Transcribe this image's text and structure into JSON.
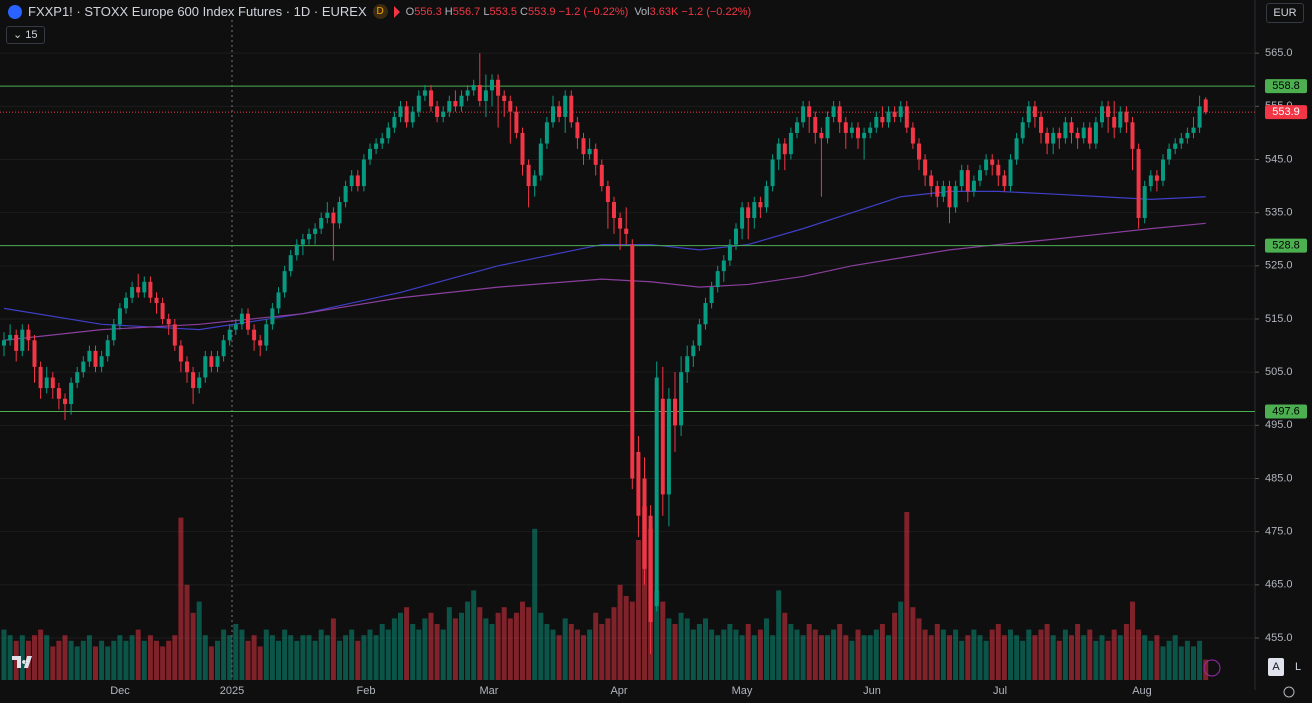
{
  "chart_data": {
    "type": "candlestick",
    "symbol_title": "FXXP1! · STOXX Europe 600 Index Futures · 1D · EUREX",
    "interval_badge": "D",
    "legend_labels": {
      "open": "O",
      "high": "H",
      "low": "L",
      "close": "C",
      "volume": "Vol"
    },
    "change": "−1.2 (−0.22%)",
    "last_volume_label": "3.63K",
    "volume_change": "−1.2 (−0.22%)",
    "indicator_count": "15",
    "currency": "EUR",
    "scale_buttons": [
      "A",
      "L"
    ],
    "x_labels": [
      "Dec",
      "2025",
      "Feb",
      "Mar",
      "Apr",
      "May",
      "Jun",
      "Jul",
      "Aug"
    ],
    "up_color": "#089981",
    "down_color": "#f23645",
    "ylim": [
      447.1,
      575.0
    ],
    "yticks": [
      {
        "value": 455,
        "label": "455.0"
      },
      {
        "value": 465,
        "label": "465.0"
      },
      {
        "value": 475,
        "label": "475.0"
      },
      {
        "value": 485,
        "label": "485.0"
      },
      {
        "value": 495,
        "label": "495.0"
      },
      {
        "value": 505,
        "label": "505.0"
      },
      {
        "value": 515,
        "label": "515.0"
      },
      {
        "value": 525,
        "label": "525.0"
      },
      {
        "value": 535,
        "label": "535.0"
      },
      {
        "value": 545,
        "label": "545.0"
      },
      {
        "value": 555,
        "label": "555.0"
      },
      {
        "value": 565,
        "label": "565.0"
      }
    ],
    "levels": [
      {
        "value": 558.8,
        "label": "558.8",
        "color": "#4caf50",
        "style": "solid"
      },
      {
        "value": 553.9,
        "label": "553.9",
        "color": "#f23645",
        "style": "dotted"
      },
      {
        "value": 528.8,
        "label": "528.8",
        "color": "#4caf50",
        "style": "solid"
      },
      {
        "value": 497.6,
        "label": "497.6",
        "color": "#4caf50",
        "style": "solid"
      }
    ],
    "open": [
      510,
      511,
      512,
      509,
      513,
      511,
      506,
      502,
      504,
      502,
      500,
      499,
      503,
      505,
      507,
      509,
      506,
      508,
      511,
      514,
      517,
      519,
      521,
      520,
      522,
      519,
      518,
      515,
      514,
      510,
      507,
      505,
      502,
      504,
      508,
      506,
      508,
      511,
      513,
      514,
      516,
      513,
      511,
      510,
      514,
      517,
      520,
      524,
      527,
      529,
      530,
      531,
      532,
      534,
      535,
      533,
      537,
      540,
      542,
      540,
      545,
      547,
      548,
      549,
      551,
      553,
      555,
      552,
      554,
      557,
      558,
      555,
      553,
      554,
      556,
      555,
      557,
      558,
      559,
      556,
      558,
      560,
      557,
      556,
      554,
      550,
      544,
      540,
      542,
      548,
      552,
      555,
      553,
      557,
      552,
      549,
      546,
      547,
      544,
      540,
      537,
      534,
      532,
      529,
      490,
      485,
      478,
      461,
      500,
      482,
      500,
      495,
      505,
      508,
      510,
      514,
      518,
      521,
      524,
      526,
      529,
      532,
      536,
      534,
      537,
      536,
      540,
      545,
      548,
      546,
      550,
      552,
      555,
      553,
      550,
      549,
      553,
      555,
      552,
      550,
      551,
      549,
      550,
      551,
      553,
      552,
      554,
      553,
      555,
      551,
      548,
      545,
      542,
      540,
      538,
      540,
      536,
      540,
      543,
      539,
      541,
      543,
      545,
      544,
      542,
      540,
      545,
      549,
      552,
      555,
      553,
      550,
      548,
      550,
      549,
      552,
      550,
      549,
      551,
      548,
      552,
      555,
      553,
      551,
      554,
      552,
      547,
      534,
      540,
      542,
      541,
      545,
      547,
      548,
      549,
      550,
      551,
      556.3
    ],
    "high": [
      512.5,
      514,
      513,
      514,
      514,
      512,
      507,
      506,
      505,
      503,
      501,
      504,
      506,
      508,
      510,
      510,
      509,
      512,
      515,
      518,
      520,
      522,
      523.5,
      523,
      523,
      520,
      519,
      516,
      515,
      511,
      508,
      506,
      505,
      509,
      509,
      509,
      512,
      514,
      515,
      517,
      517,
      514,
      512,
      515,
      518,
      521,
      525,
      528,
      530,
      531,
      532,
      533,
      535,
      537,
      536,
      538,
      541,
      543,
      543,
      546,
      548,
      549,
      550,
      552,
      554,
      556,
      556,
      555,
      558,
      559,
      559,
      556,
      555,
      557,
      558,
      558,
      559,
      560,
      565,
      561,
      561,
      561,
      558,
      557,
      555,
      551,
      545,
      543,
      549,
      553,
      557,
      556,
      558,
      558,
      553,
      550,
      549,
      548,
      545,
      541,
      538,
      535,
      536,
      530,
      493,
      489,
      480,
      507,
      506,
      502,
      505,
      508,
      510,
      511,
      515,
      519,
      522,
      525,
      527,
      530,
      533,
      537,
      537,
      538,
      538,
      541,
      546,
      549,
      549,
      551,
      553,
      556,
      556,
      554,
      551,
      554,
      556,
      556,
      553,
      552,
      552,
      551,
      552,
      554,
      555,
      555,
      555,
      556,
      556,
      552,
      549,
      546,
      543,
      541,
      541,
      541,
      541,
      544,
      544,
      542,
      544,
      546,
      546,
      545,
      543,
      546,
      550,
      553,
      556,
      556,
      554,
      551,
      551,
      551,
      553,
      553,
      551,
      552,
      552,
      553,
      556,
      556,
      556,
      555,
      555,
      553,
      548,
      541,
      543,
      543,
      546,
      548,
      549,
      550,
      551,
      553,
      557,
      556.7
    ],
    "low": [
      508,
      510,
      507,
      508,
      509,
      503,
      500,
      501,
      500,
      498,
      496,
      497,
      502,
      504,
      506,
      505,
      505,
      507,
      510,
      513,
      516,
      518,
      519,
      519,
      518,
      516,
      514,
      512,
      509,
      505,
      503,
      499,
      501,
      503,
      505,
      505,
      507,
      510,
      512,
      513,
      512,
      509,
      508,
      509,
      513,
      516,
      519,
      523,
      526,
      527,
      529,
      529,
      531,
      533,
      526,
      532,
      536,
      539,
      539,
      539,
      544,
      546,
      547,
      548,
      550,
      552,
      551,
      551,
      553,
      556,
      554,
      552,
      552,
      553,
      554,
      554,
      556,
      557,
      555,
      553,
      555,
      551,
      553,
      548,
      549,
      542,
      536,
      538,
      541,
      547,
      551,
      552,
      550,
      551,
      547,
      544,
      545,
      542,
      539,
      532,
      531,
      528,
      529,
      483,
      474,
      465,
      452,
      460,
      478,
      476,
      490,
      493,
      503,
      506,
      509,
      513,
      517,
      520,
      522,
      525,
      528,
      530,
      530,
      532,
      534,
      535,
      539,
      543,
      543,
      545,
      549,
      551,
      550,
      548,
      538,
      548,
      552,
      550,
      547,
      549,
      547,
      545,
      549,
      550,
      551,
      551,
      552,
      552,
      550,
      547,
      543,
      540,
      538,
      536,
      537,
      533,
      535,
      539,
      537,
      538,
      540,
      542,
      542,
      540,
      539,
      539,
      544,
      548,
      551,
      551,
      548,
      546,
      546,
      547,
      548,
      548,
      547,
      548,
      547,
      547,
      551,
      550,
      549,
      550,
      550,
      543,
      532,
      533,
      539,
      539,
      540,
      544,
      546,
      547,
      548,
      549,
      550,
      553.5
    ],
    "close": [
      511,
      512,
      509,
      513,
      511,
      506,
      502,
      504,
      502,
      500,
      499,
      503,
      505,
      507,
      509,
      506,
      508,
      511,
      514,
      517,
      519,
      521,
      520,
      522,
      519,
      518,
      515,
      514,
      510,
      507,
      505,
      502,
      504,
      508,
      506,
      508,
      511,
      513,
      514,
      516,
      513,
      511,
      510,
      514,
      517,
      520,
      524,
      527,
      529,
      530,
      531,
      532,
      534,
      535,
      533,
      537,
      540,
      542,
      540,
      545,
      547,
      548,
      549,
      551,
      553,
      555,
      552,
      554,
      557,
      558,
      555,
      553,
      554,
      556,
      555,
      557,
      558,
      559,
      556,
      558,
      560,
      557,
      556,
      554,
      550,
      544,
      540,
      542,
      548,
      552,
      555,
      553,
      557,
      552,
      549,
      546,
      547,
      544,
      540,
      537,
      534,
      532,
      531,
      485,
      478,
      468,
      458,
      504,
      482,
      500,
      495,
      505,
      508,
      510,
      514,
      518,
      521,
      524,
      526,
      529,
      532,
      536,
      534,
      537,
      536,
      540,
      545,
      548,
      546,
      550,
      552,
      555,
      553,
      550,
      549,
      553,
      555,
      552,
      550,
      551,
      549,
      550,
      551,
      553,
      552,
      554,
      553,
      555,
      551,
      548,
      545,
      542,
      540,
      538,
      540,
      536,
      540,
      543,
      539,
      541,
      543,
      545,
      544,
      542,
      540,
      545,
      549,
      552,
      555,
      553,
      550,
      548,
      550,
      549,
      552,
      550,
      549,
      551,
      548,
      552,
      555,
      553,
      551,
      554,
      552,
      547,
      534,
      540,
      542,
      541,
      545,
      547,
      548,
      549,
      550,
      551,
      555,
      553.9
    ],
    "volume": [
      9,
      8,
      7,
      8,
      7,
      8,
      9,
      8,
      6,
      7,
      8,
      7,
      6,
      7,
      8,
      6,
      7,
      6,
      7,
      8,
      7,
      8,
      9,
      7,
      8,
      7,
      6,
      7,
      8,
      29,
      17,
      12,
      14,
      8,
      6,
      7,
      9,
      8,
      10,
      9,
      7,
      8,
      6,
      9,
      8,
      7,
      9,
      8,
      7,
      8,
      8,
      7,
      9,
      8,
      11,
      7,
      8,
      9,
      7,
      8,
      9,
      8,
      10,
      9,
      11,
      12,
      13,
      10,
      9,
      11,
      12,
      10,
      9,
      13,
      11,
      12,
      14,
      16,
      13,
      11,
      10,
      12,
      13,
      11,
      12,
      14,
      13,
      27,
      12,
      10,
      9,
      8,
      11,
      10,
      9,
      8,
      9,
      12,
      10,
      11,
      13,
      17,
      15,
      14,
      25,
      31,
      27,
      16,
      14,
      11,
      10,
      12,
      11,
      9,
      10,
      11,
      9,
      8,
      9,
      10,
      9,
      8,
      10,
      8,
      9,
      11,
      8,
      16,
      12,
      10,
      9,
      8,
      10,
      9,
      8,
      8,
      9,
      10,
      8,
      7,
      9,
      8,
      8,
      9,
      10,
      8,
      12,
      14,
      30,
      13,
      11,
      9,
      8,
      10,
      9,
      8,
      9,
      7,
      8,
      9,
      8,
      7,
      9,
      10,
      8,
      9,
      8,
      7,
      9,
      8,
      9,
      10,
      8,
      7,
      9,
      8,
      10,
      8,
      9,
      7,
      8,
      7,
      9,
      8,
      10,
      14,
      9,
      8,
      7,
      8,
      6,
      7,
      8,
      6,
      7,
      6,
      7,
      3.63
    ],
    "moving_averages": [
      {
        "color": "#3f3fc8",
        "index": [
          0,
          16,
          32,
          49,
          65,
          81,
          98,
          106,
          114,
          122,
          131,
          139,
          147,
          155,
          163,
          172,
          180,
          188,
          197
        ],
        "values": [
          517,
          514,
          513,
          516,
          520,
          525,
          529,
          529,
          528,
          529,
          532,
          535,
          538,
          539,
          539,
          538.5,
          538,
          537.5,
          538
        ]
      },
      {
        "color": "#8a3f9e",
        "index": [
          0,
          16,
          32,
          49,
          65,
          81,
          98,
          106,
          114,
          122,
          131,
          139,
          147,
          155,
          163,
          172,
          180,
          188,
          197
        ],
        "values": [
          511,
          513,
          514,
          516,
          519,
          521,
          522.5,
          522,
          521,
          521.5,
          523,
          525,
          526.5,
          528,
          529,
          530,
          531,
          532,
          533
        ]
      }
    ]
  }
}
